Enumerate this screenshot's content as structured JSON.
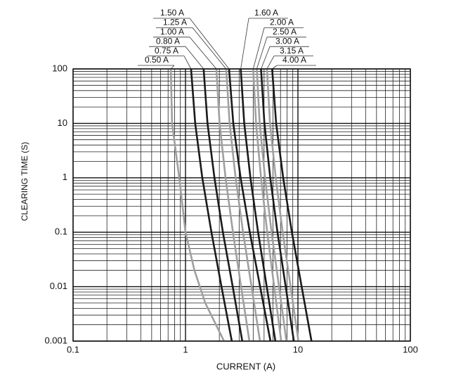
{
  "chart_data": {
    "type": "line",
    "x_label": "CURRENT (A)",
    "y_label": "CLEARING TIME (S)",
    "xscale": "log",
    "yscale": "log",
    "grid": true,
    "xlim": [
      0.1,
      100
    ],
    "xticks": [
      0.1,
      1,
      10,
      100
    ],
    "ylim": [
      0.001,
      100
    ],
    "yticks": [
      0.001,
      0.01,
      0.1,
      1,
      10,
      100
    ],
    "series": [
      {
        "name": "0.50 A",
        "color": "#a0a0a0",
        "x": [
          0.74,
          0.76,
          0.88,
          1.0,
          1.2,
          1.5,
          2.2
        ],
        "values": [
          100,
          10,
          1,
          0.1,
          0.02,
          0.005,
          0.001
        ]
      },
      {
        "name": "0.75 A",
        "color": "#1a1a1a",
        "x": [
          1.12,
          1.22,
          1.41,
          1.7,
          2.09,
          2.58
        ],
        "values": [
          100,
          10,
          1,
          0.1,
          0.01,
          0.001
        ]
      },
      {
        "name": "0.80 A",
        "color": "#1a1a1a",
        "x": [
          1.45,
          1.57,
          1.81,
          2.15,
          2.63,
          3.2
        ],
        "values": [
          100,
          10,
          1,
          0.1,
          0.01,
          0.001
        ]
      },
      {
        "name": "1.00 A",
        "color": "#a0a0a0",
        "x": [
          1.88,
          2.01,
          2.27,
          2.64,
          3.12,
          3.7
        ],
        "values": [
          100,
          10,
          1,
          0.1,
          0.01,
          0.001
        ]
      },
      {
        "name": "1.25 A",
        "color": "#a0a0a0",
        "x": [
          2.3,
          2.47,
          2.79,
          3.25,
          3.87,
          4.6
        ],
        "values": [
          100,
          10,
          1,
          0.1,
          0.01,
          0.001
        ]
      },
      {
        "name": "1.50 A",
        "color": "#1a1a1a",
        "x": [
          2.44,
          2.66,
          3.09,
          3.73,
          4.61,
          5.7
        ],
        "values": [
          100,
          10,
          1,
          0.1,
          0.01,
          0.001
        ]
      },
      {
        "name": "1.60 A",
        "color": "#1a1a1a",
        "x": [
          3.1,
          3.33,
          3.78,
          4.42,
          5.28,
          6.3
        ],
        "values": [
          100,
          10,
          1,
          0.1,
          0.01,
          0.001
        ]
      },
      {
        "name": "2.00 A",
        "color": "#a0a0a0",
        "x": [
          4.0,
          4.24,
          4.7,
          5.33,
          6.15,
          7.1
        ],
        "values": [
          100,
          10,
          1,
          0.1,
          0.01,
          0.001
        ]
      },
      {
        "name": "2.50 A",
        "color": "#a0a0a0",
        "x": [
          4.3,
          4.57,
          5.1,
          5.83,
          6.79,
          7.9
        ],
        "values": [
          100,
          10,
          1,
          0.1,
          0.01,
          0.001
        ]
      },
      {
        "name": "3.00 A",
        "color": "#1a1a1a",
        "x": [
          4.7,
          5.03,
          5.67,
          6.58,
          7.78,
          9.2
        ],
        "values": [
          100,
          10,
          1,
          0.1,
          0.01,
          0.001
        ]
      },
      {
        "name": "3.15 A",
        "color": "#a0a0a0",
        "x": [
          5.3,
          5.65,
          6.35,
          7.32,
          8.61,
          10.1
        ],
        "values": [
          100,
          10,
          1,
          0.1,
          0.01,
          0.001
        ]
      },
      {
        "name": "4.00 A",
        "color": "#1a1a1a",
        "x": [
          5.9,
          6.4,
          7.39,
          8.83,
          10.8,
          13.2
        ],
        "values": [
          100,
          10,
          1,
          0.1,
          0.01,
          0.001
        ]
      }
    ]
  }
}
